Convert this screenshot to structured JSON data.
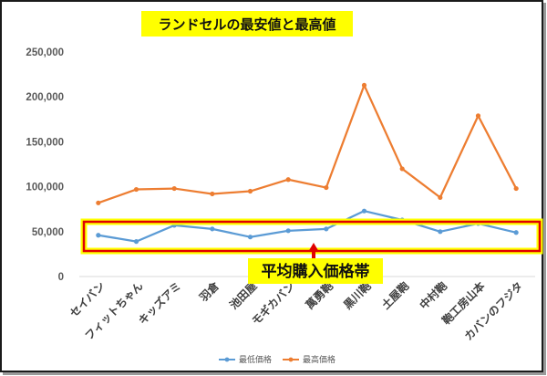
{
  "chart_data": {
    "type": "line",
    "title": "ランドセルの最安値と最高値",
    "categories": [
      "セイバン",
      "フィットちゃん",
      "キッズアミ",
      "羽倉",
      "池田屋",
      "モギカバン",
      "萬勇鞄",
      "黒川鞄",
      "土屋鞄",
      "中村鞄",
      "鞄工房山本",
      "カバンのフジタ"
    ],
    "series": [
      {
        "name": "最低価格",
        "color": "#5b9bd5",
        "values": [
          46000,
          39000,
          57000,
          53000,
          44000,
          51000,
          53000,
          73000,
          63000,
          50000,
          59000,
          49000
        ]
      },
      {
        "name": "最高価格",
        "color": "#ed7d31",
        "values": [
          82000,
          97000,
          98000,
          92000,
          95000,
          108000,
          99000,
          213000,
          120000,
          88000,
          179000,
          98000
        ]
      }
    ],
    "yticks": [
      "0",
      "50,000",
      "100,000",
      "150,000",
      "200,000",
      "250,000"
    ],
    "ylim": [
      0,
      250000
    ],
    "grid": false,
    "legend": "bottom",
    "annotation": {
      "text": "平均購入価格帯",
      "range": [
        40000,
        60000
      ],
      "highlight_color": "#ffff00",
      "border_color": "#e00000"
    }
  }
}
